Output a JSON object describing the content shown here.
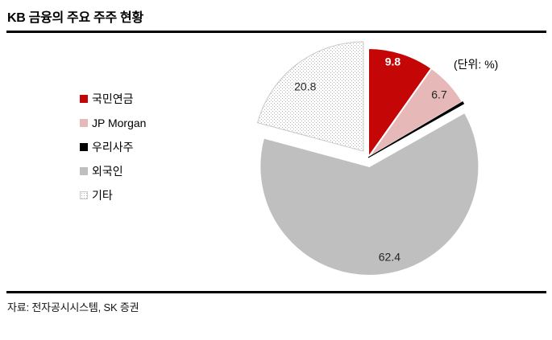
{
  "header": {
    "title": "KB 금융의 주요 주주 현황"
  },
  "footer": {
    "source": "자료: 전자공시시스템, SK 증권"
  },
  "chart_data": {
    "type": "pie",
    "title": "KB 금융의 주요 주주 현황",
    "unit_label": "(단위: %)",
    "legend_position": "left",
    "direction": "clockwise",
    "start_angle_deg": 0,
    "total": 100,
    "slices": [
      {
        "label": "국민연금",
        "value": 9.8,
        "data_label": "9.8",
        "color": "#C40606",
        "label_color": "#FFFFFF",
        "label_bold": true
      },
      {
        "label": "JP Morgan",
        "value": 6.7,
        "data_label": "6.7",
        "color": "#E6B9B8",
        "label_color": "#262626",
        "label_bold": false
      },
      {
        "label": "우리사주",
        "value": 0.3,
        "data_label": "",
        "color": "#000000",
        "label_color": "",
        "label_bold": false
      },
      {
        "label": "외국인",
        "value": 62.4,
        "data_label": "62.4",
        "color": "#BFBFBF",
        "label_color": "#262626",
        "label_bold": false
      },
      {
        "label": "기타",
        "value": 20.8,
        "data_label": "20.8",
        "color": "dot-pattern-white",
        "label_color": "#262626",
        "label_bold": false
      }
    ]
  }
}
